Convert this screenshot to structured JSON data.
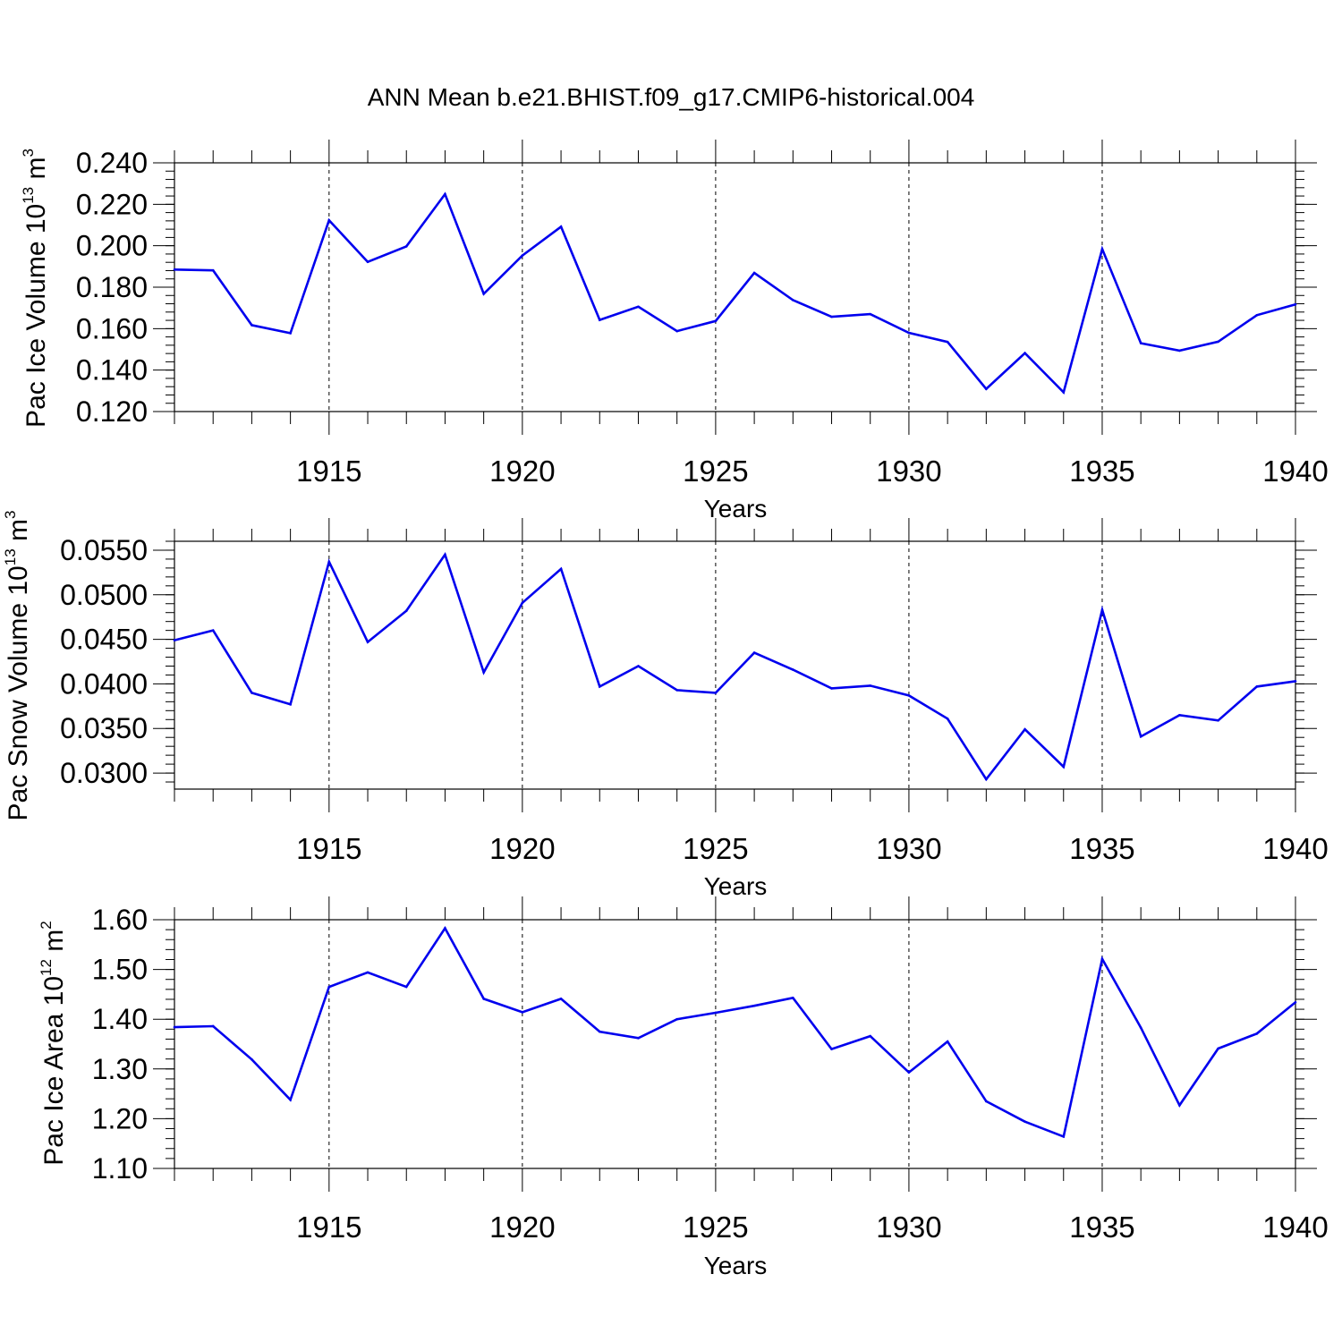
{
  "title": "ANN Mean b.e21.BHIST.f09_g17.CMIP6-historical.004",
  "series_color": "#0000ee",
  "chart_data": [
    {
      "type": "line",
      "ylabel_main": "Pac Ice Volume 10",
      "ylabel_exp": "13",
      "ylabel_unit": " m",
      "ylabel_unit_exp": "3",
      "xlabel": "Years",
      "xlim": [
        1911,
        1940
      ],
      "ylim": [
        0.12,
        0.24
      ],
      "yticks": [
        "0.120",
        "0.140",
        "0.160",
        "0.180",
        "0.200",
        "0.220",
        "0.240"
      ],
      "ytick_values": [
        0.12,
        0.14,
        0.16,
        0.18,
        0.2,
        0.22,
        0.24
      ],
      "xticks": [
        "1915",
        "1920",
        "1925",
        "1930",
        "1935",
        "1940"
      ],
      "xtick_values": [
        1915,
        1920,
        1925,
        1930,
        1935,
        1940
      ],
      "x": [
        1911,
        1912,
        1913,
        1914,
        1915,
        1916,
        1917,
        1918,
        1919,
        1920,
        1921,
        1922,
        1923,
        1924,
        1925,
        1926,
        1927,
        1928,
        1929,
        1930,
        1931,
        1932,
        1933,
        1934,
        1935,
        1936,
        1937,
        1938,
        1939,
        1940
      ],
      "values": [
        0.1885,
        0.1881,
        0.1617,
        0.1578,
        0.2123,
        0.1922,
        0.1997,
        0.2249,
        0.1768,
        0.1953,
        0.2092,
        0.1642,
        0.1706,
        0.1588,
        0.1637,
        0.1869,
        0.1738,
        0.1657,
        0.167,
        0.158,
        0.1536,
        0.1309,
        0.1482,
        0.1293,
        0.1984,
        0.153,
        0.1494,
        0.1537,
        0.1665,
        0.1717
      ]
    },
    {
      "type": "line",
      "ylabel_main": "Pac Snow Volume 10",
      "ylabel_exp": "13",
      "ylabel_unit": " m",
      "ylabel_unit_exp": "3",
      "xlabel": "Years",
      "xlim": [
        1911,
        1940
      ],
      "ylim": [
        0.0282,
        0.056
      ],
      "yticks": [
        "0.0300",
        "0.0350",
        "0.0400",
        "0.0450",
        "0.0500",
        "0.0550"
      ],
      "ytick_values": [
        0.03,
        0.035,
        0.04,
        0.045,
        0.05,
        0.055
      ],
      "xticks": [
        "1915",
        "1920",
        "1925",
        "1930",
        "1935",
        "1940"
      ],
      "xtick_values": [
        1915,
        1920,
        1925,
        1930,
        1935,
        1940
      ],
      "x": [
        1911,
        1912,
        1913,
        1914,
        1915,
        1916,
        1917,
        1918,
        1919,
        1920,
        1921,
        1922,
        1923,
        1924,
        1925,
        1926,
        1927,
        1928,
        1929,
        1930,
        1931,
        1932,
        1933,
        1934,
        1935,
        1936,
        1937,
        1938,
        1939,
        1940
      ],
      "values": [
        0.0449,
        0.046,
        0.039,
        0.0377,
        0.0537,
        0.0447,
        0.0482,
        0.0545,
        0.0413,
        0.0491,
        0.0529,
        0.0397,
        0.042,
        0.0393,
        0.039,
        0.0435,
        0.0416,
        0.0395,
        0.0398,
        0.0387,
        0.0361,
        0.0293,
        0.0349,
        0.0307,
        0.0483,
        0.0341,
        0.0365,
        0.0359,
        0.0397,
        0.0403
      ]
    },
    {
      "type": "line",
      "ylabel_main": "Pac Ice Area 10",
      "ylabel_exp": "12",
      "ylabel_unit": " m",
      "ylabel_unit_exp": "2",
      "xlabel": "Years",
      "xlim": [
        1911,
        1940
      ],
      "ylim": [
        1.1,
        1.6
      ],
      "yticks": [
        "1.10",
        "1.20",
        "1.30",
        "1.40",
        "1.50",
        "1.60"
      ],
      "ytick_values": [
        1.1,
        1.2,
        1.3,
        1.4,
        1.5,
        1.6
      ],
      "xticks": [
        "1915",
        "1920",
        "1925",
        "1930",
        "1935",
        "1940"
      ],
      "xtick_values": [
        1915,
        1920,
        1925,
        1930,
        1935,
        1940
      ],
      "x": [
        1911,
        1912,
        1913,
        1914,
        1915,
        1916,
        1917,
        1918,
        1919,
        1920,
        1921,
        1922,
        1923,
        1924,
        1925,
        1926,
        1927,
        1928,
        1929,
        1930,
        1931,
        1932,
        1933,
        1934,
        1935,
        1936,
        1937,
        1938,
        1939,
        1940
      ],
      "values": [
        1.384,
        1.386,
        1.319,
        1.238,
        1.465,
        1.494,
        1.465,
        1.583,
        1.441,
        1.414,
        1.441,
        1.375,
        1.362,
        1.4,
        1.413,
        1.427,
        1.443,
        1.34,
        1.366,
        1.293,
        1.355,
        1.235,
        1.194,
        1.164,
        1.521,
        1.383,
        1.227,
        1.341,
        1.371,
        1.434
      ]
    }
  ]
}
